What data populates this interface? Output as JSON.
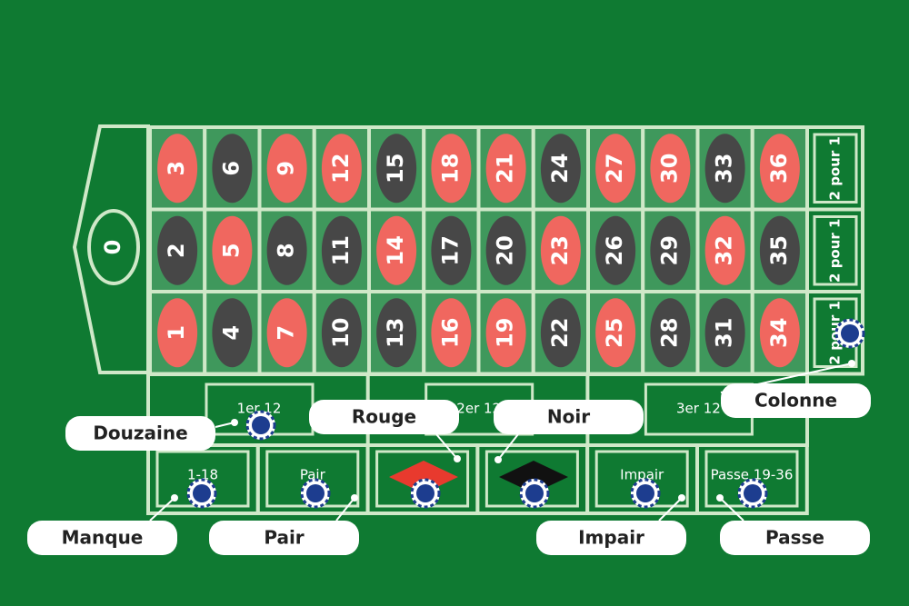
{
  "colors": {
    "red": "#f0675f",
    "black": "#474747"
  },
  "zero": "0",
  "numbers": {
    "rows": [
      [
        {
          "number": "3",
          "color": "red"
        },
        {
          "number": "6",
          "color": "black"
        },
        {
          "number": "9",
          "color": "red"
        },
        {
          "number": "12",
          "color": "red"
        },
        {
          "number": "15",
          "color": "black"
        },
        {
          "number": "18",
          "color": "red"
        },
        {
          "number": "21",
          "color": "red"
        },
        {
          "number": "24",
          "color": "black"
        },
        {
          "number": "27",
          "color": "red"
        },
        {
          "number": "30",
          "color": "red"
        },
        {
          "number": "33",
          "color": "black"
        },
        {
          "number": "36",
          "color": "red"
        }
      ],
      [
        {
          "number": "2",
          "color": "black"
        },
        {
          "number": "5",
          "color": "red"
        },
        {
          "number": "8",
          "color": "black"
        },
        {
          "number": "11",
          "color": "black"
        },
        {
          "number": "14",
          "color": "red"
        },
        {
          "number": "17",
          "color": "black"
        },
        {
          "number": "20",
          "color": "black"
        },
        {
          "number": "23",
          "color": "red"
        },
        {
          "number": "26",
          "color": "black"
        },
        {
          "number": "29",
          "color": "black"
        },
        {
          "number": "32",
          "color": "red"
        },
        {
          "number": "35",
          "color": "black"
        }
      ],
      [
        {
          "number": "1",
          "color": "red"
        },
        {
          "number": "4",
          "color": "black"
        },
        {
          "number": "7",
          "color": "red"
        },
        {
          "number": "10",
          "color": "black"
        },
        {
          "number": "13",
          "color": "black"
        },
        {
          "number": "16",
          "color": "red"
        },
        {
          "number": "19",
          "color": "red"
        },
        {
          "number": "22",
          "color": "black"
        },
        {
          "number": "25",
          "color": "red"
        },
        {
          "number": "28",
          "color": "black"
        },
        {
          "number": "31",
          "color": "black"
        },
        {
          "number": "34",
          "color": "red"
        }
      ]
    ]
  },
  "columns": [
    "2 pour 1",
    "2 pour 1",
    "2 pour 1"
  ],
  "dozens": [
    "1er 12",
    "2er 12",
    "3er 12"
  ],
  "even_bets": [
    "1-18",
    "Pair",
    "",
    "",
    "Impair",
    "Passe 19-36"
  ],
  "callouts": [
    "Douzaine",
    "Rouge",
    "Noir",
    "Colonne",
    "Manque",
    "Pair",
    "Impair",
    "Passe"
  ]
}
